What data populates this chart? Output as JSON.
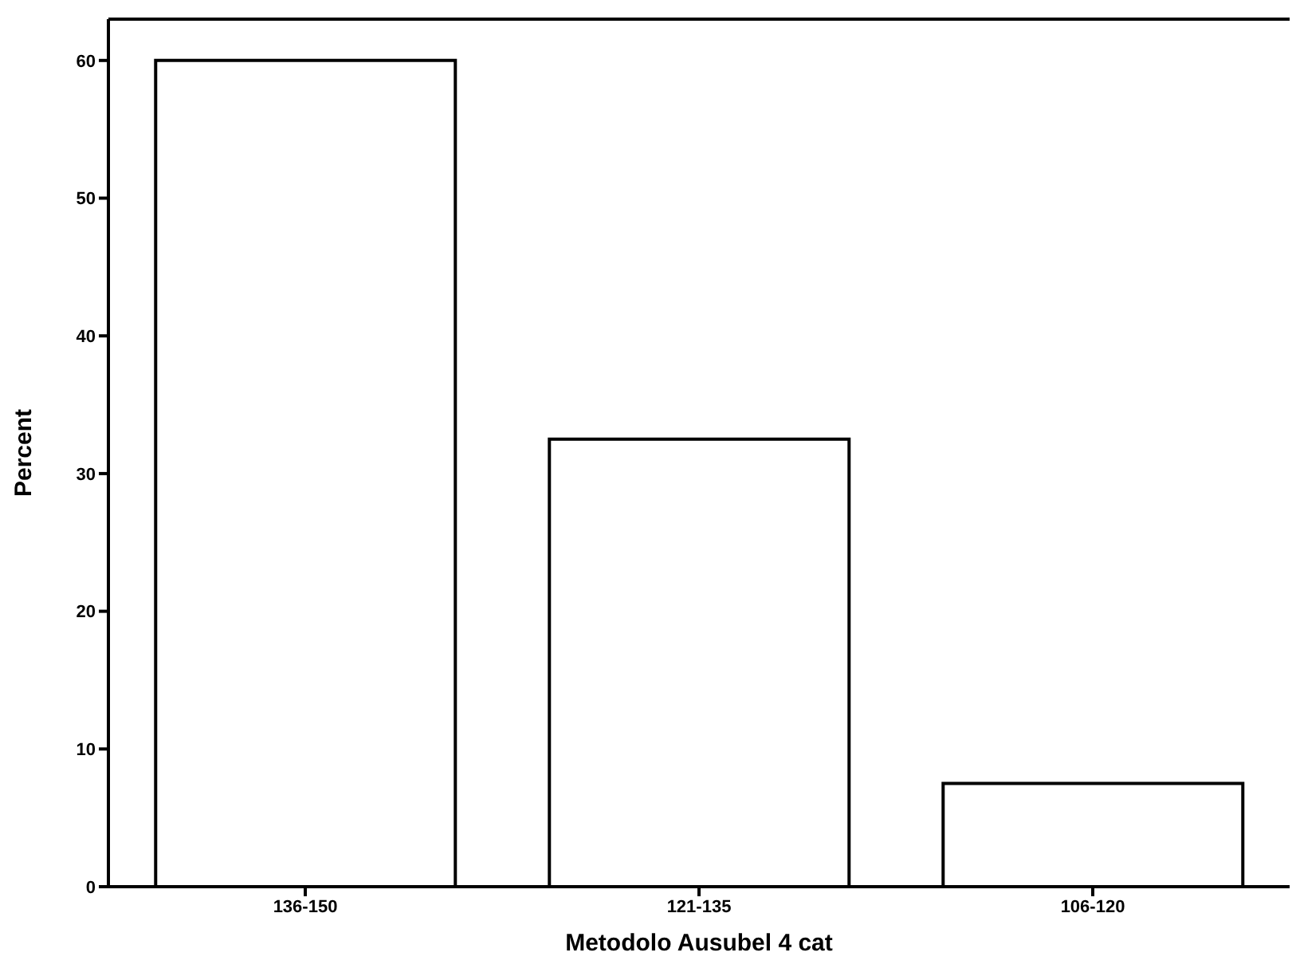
{
  "chart_data": {
    "type": "bar",
    "xlabel": "Metodolo Ausubel 4 cat",
    "ylabel": "Percent",
    "categories": [
      "136-150",
      "121-135",
      "106-120"
    ],
    "values": [
      60,
      32.5,
      7.5
    ],
    "color": "#ffffff",
    "ylim": [
      0,
      63
    ],
    "yticks": [
      0,
      10,
      20,
      30,
      40,
      50,
      60
    ],
    "grid": false,
    "legend": false
  }
}
